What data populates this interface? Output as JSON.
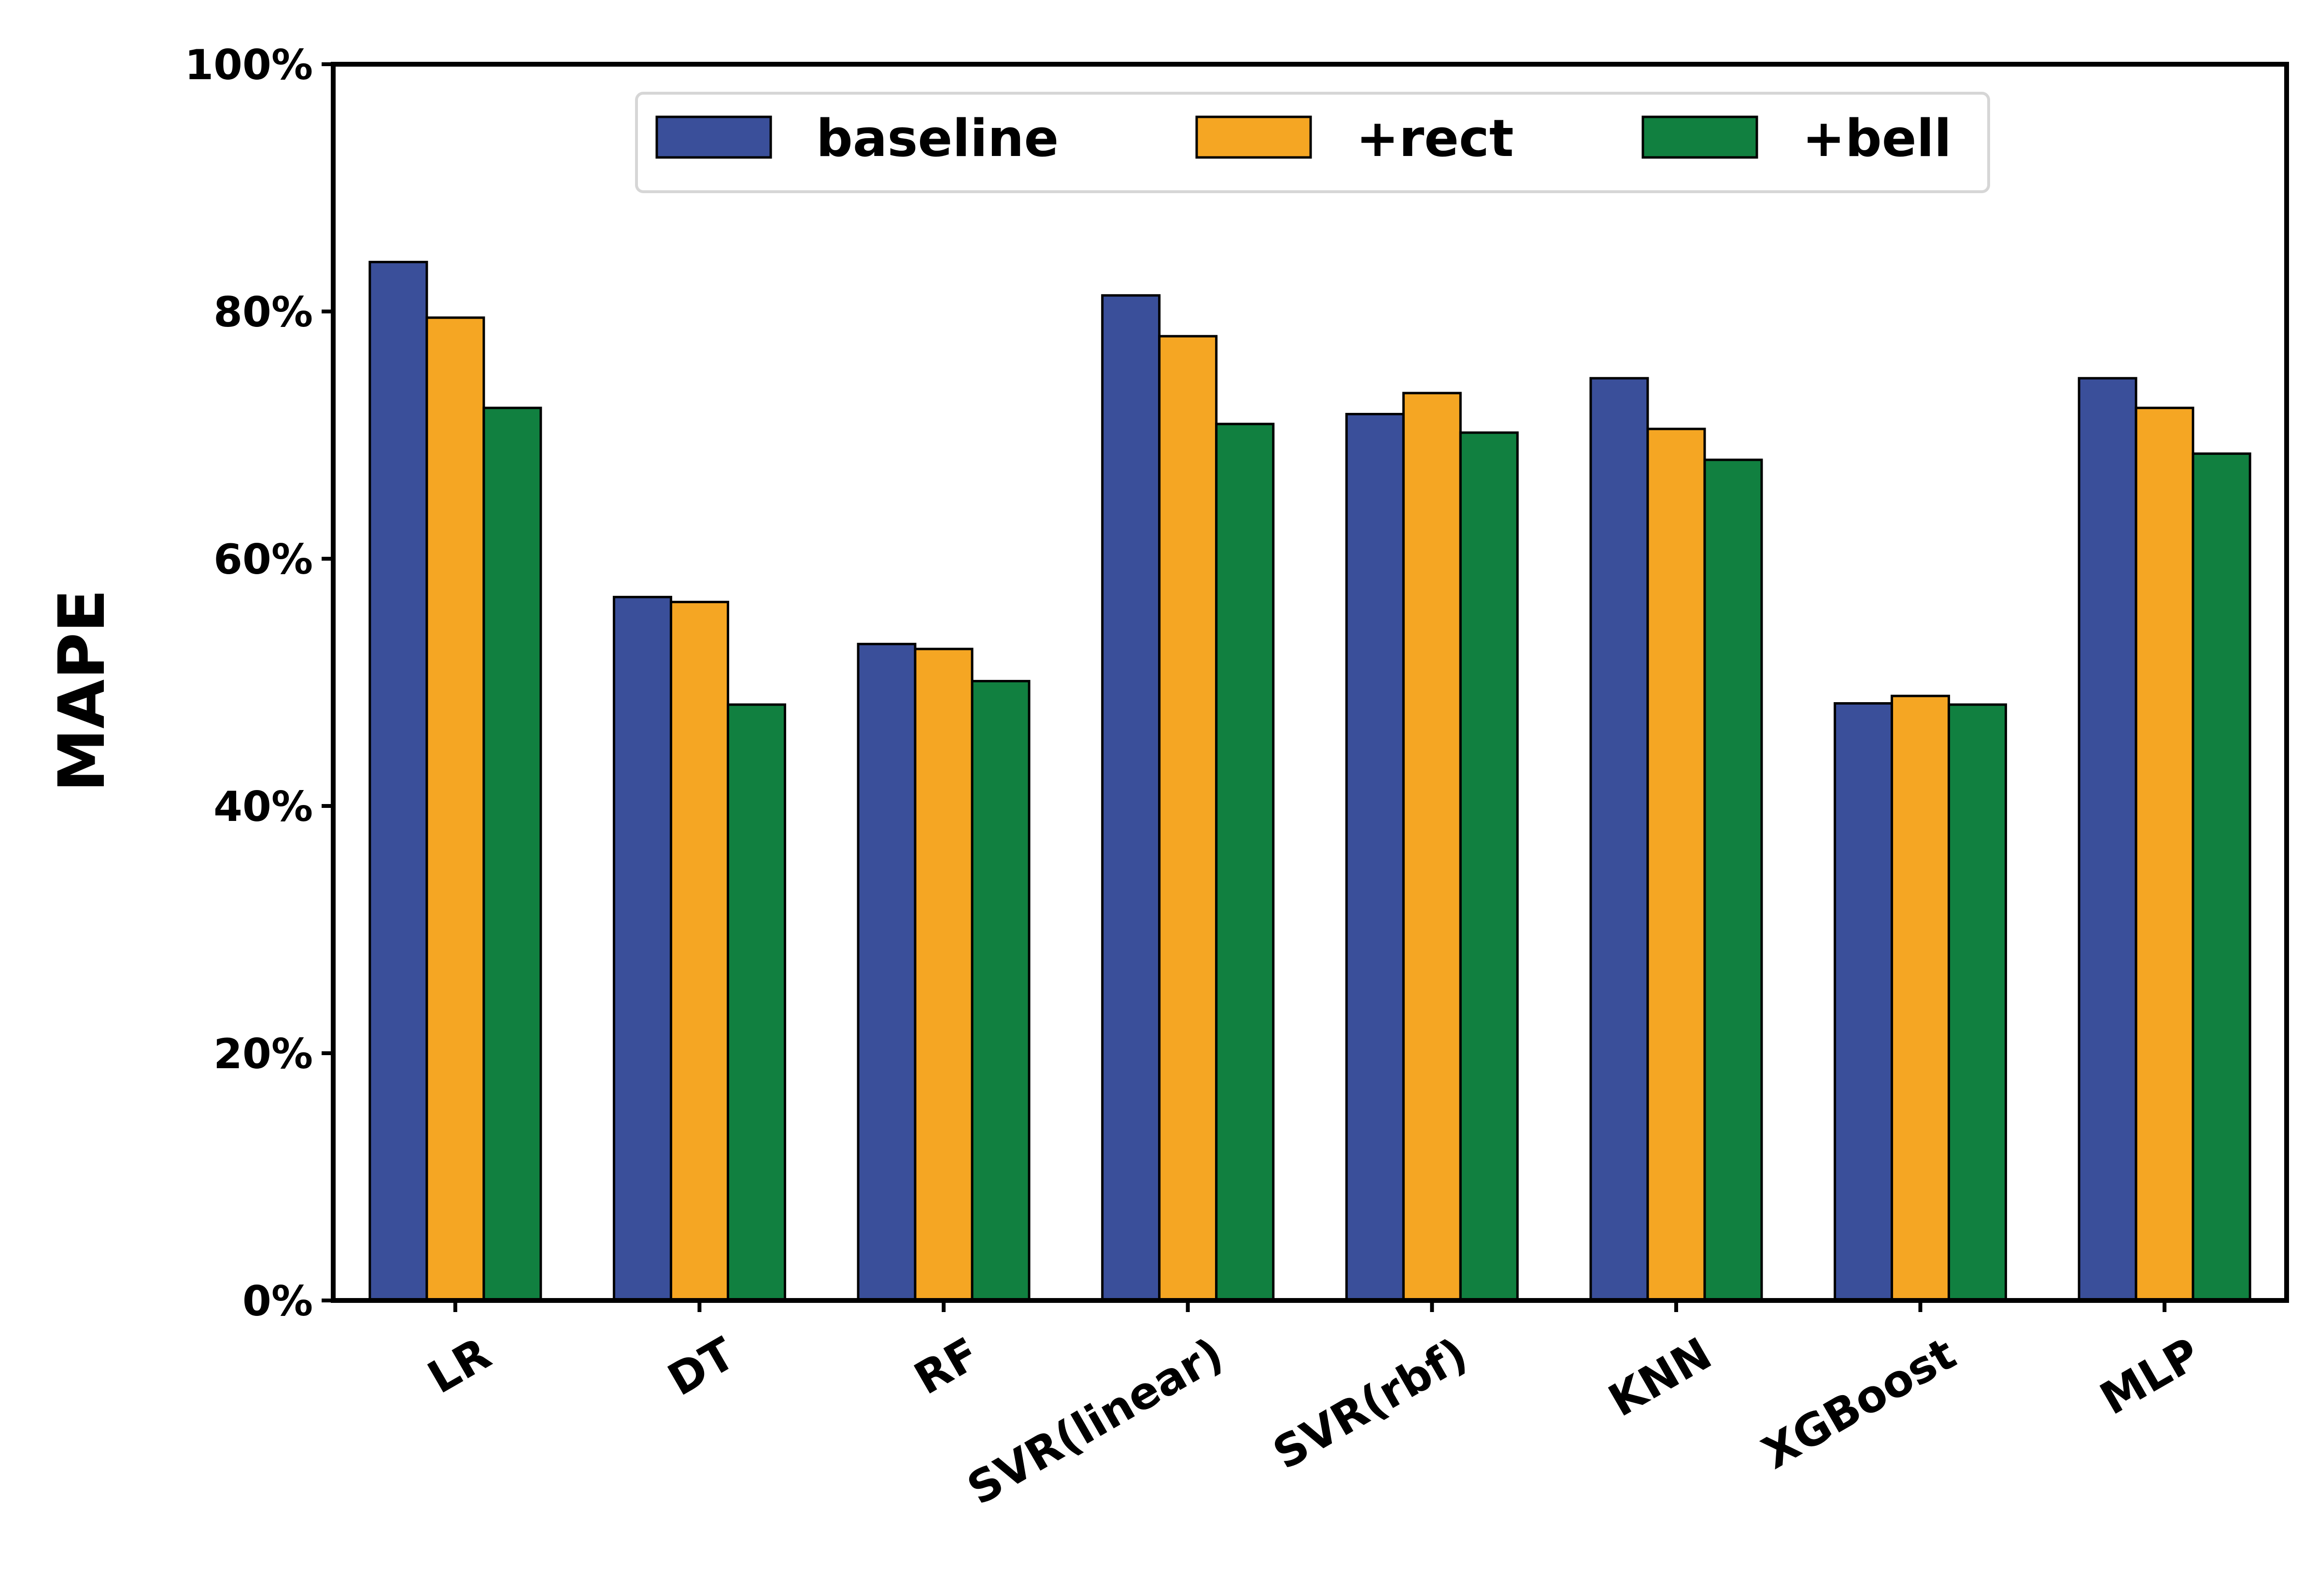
{
  "chart_data": {
    "type": "bar",
    "title": "",
    "xlabel": "",
    "ylabel": "MAPE",
    "ylim": [
      0,
      100
    ],
    "ytick_values": [
      0,
      20,
      40,
      60,
      80,
      100
    ],
    "ytick_labels": [
      "0%",
      "20%",
      "40%",
      "60%",
      "80%",
      "100%"
    ],
    "categories": [
      "LR",
      "DT",
      "RF",
      "SVR(linear)",
      "SVR(rbf)",
      "KNN",
      "XGBoost",
      "MLP"
    ],
    "series": [
      {
        "name": "baseline",
        "color": "#3a4f9a",
        "values": [
          84.0,
          56.9,
          53.1,
          81.3,
          71.7,
          74.6,
          48.3,
          74.6
        ]
      },
      {
        "name": "+rect",
        "color": "#f5a623",
        "values": [
          79.5,
          56.5,
          52.7,
          78.0,
          73.4,
          70.5,
          48.9,
          72.2
        ]
      },
      {
        "name": "+bell",
        "color": "#118040",
        "values": [
          72.2,
          48.2,
          50.1,
          70.9,
          70.2,
          68.0,
          48.2,
          68.5
        ]
      }
    ],
    "legend_position": "top-center",
    "grid": false
  }
}
